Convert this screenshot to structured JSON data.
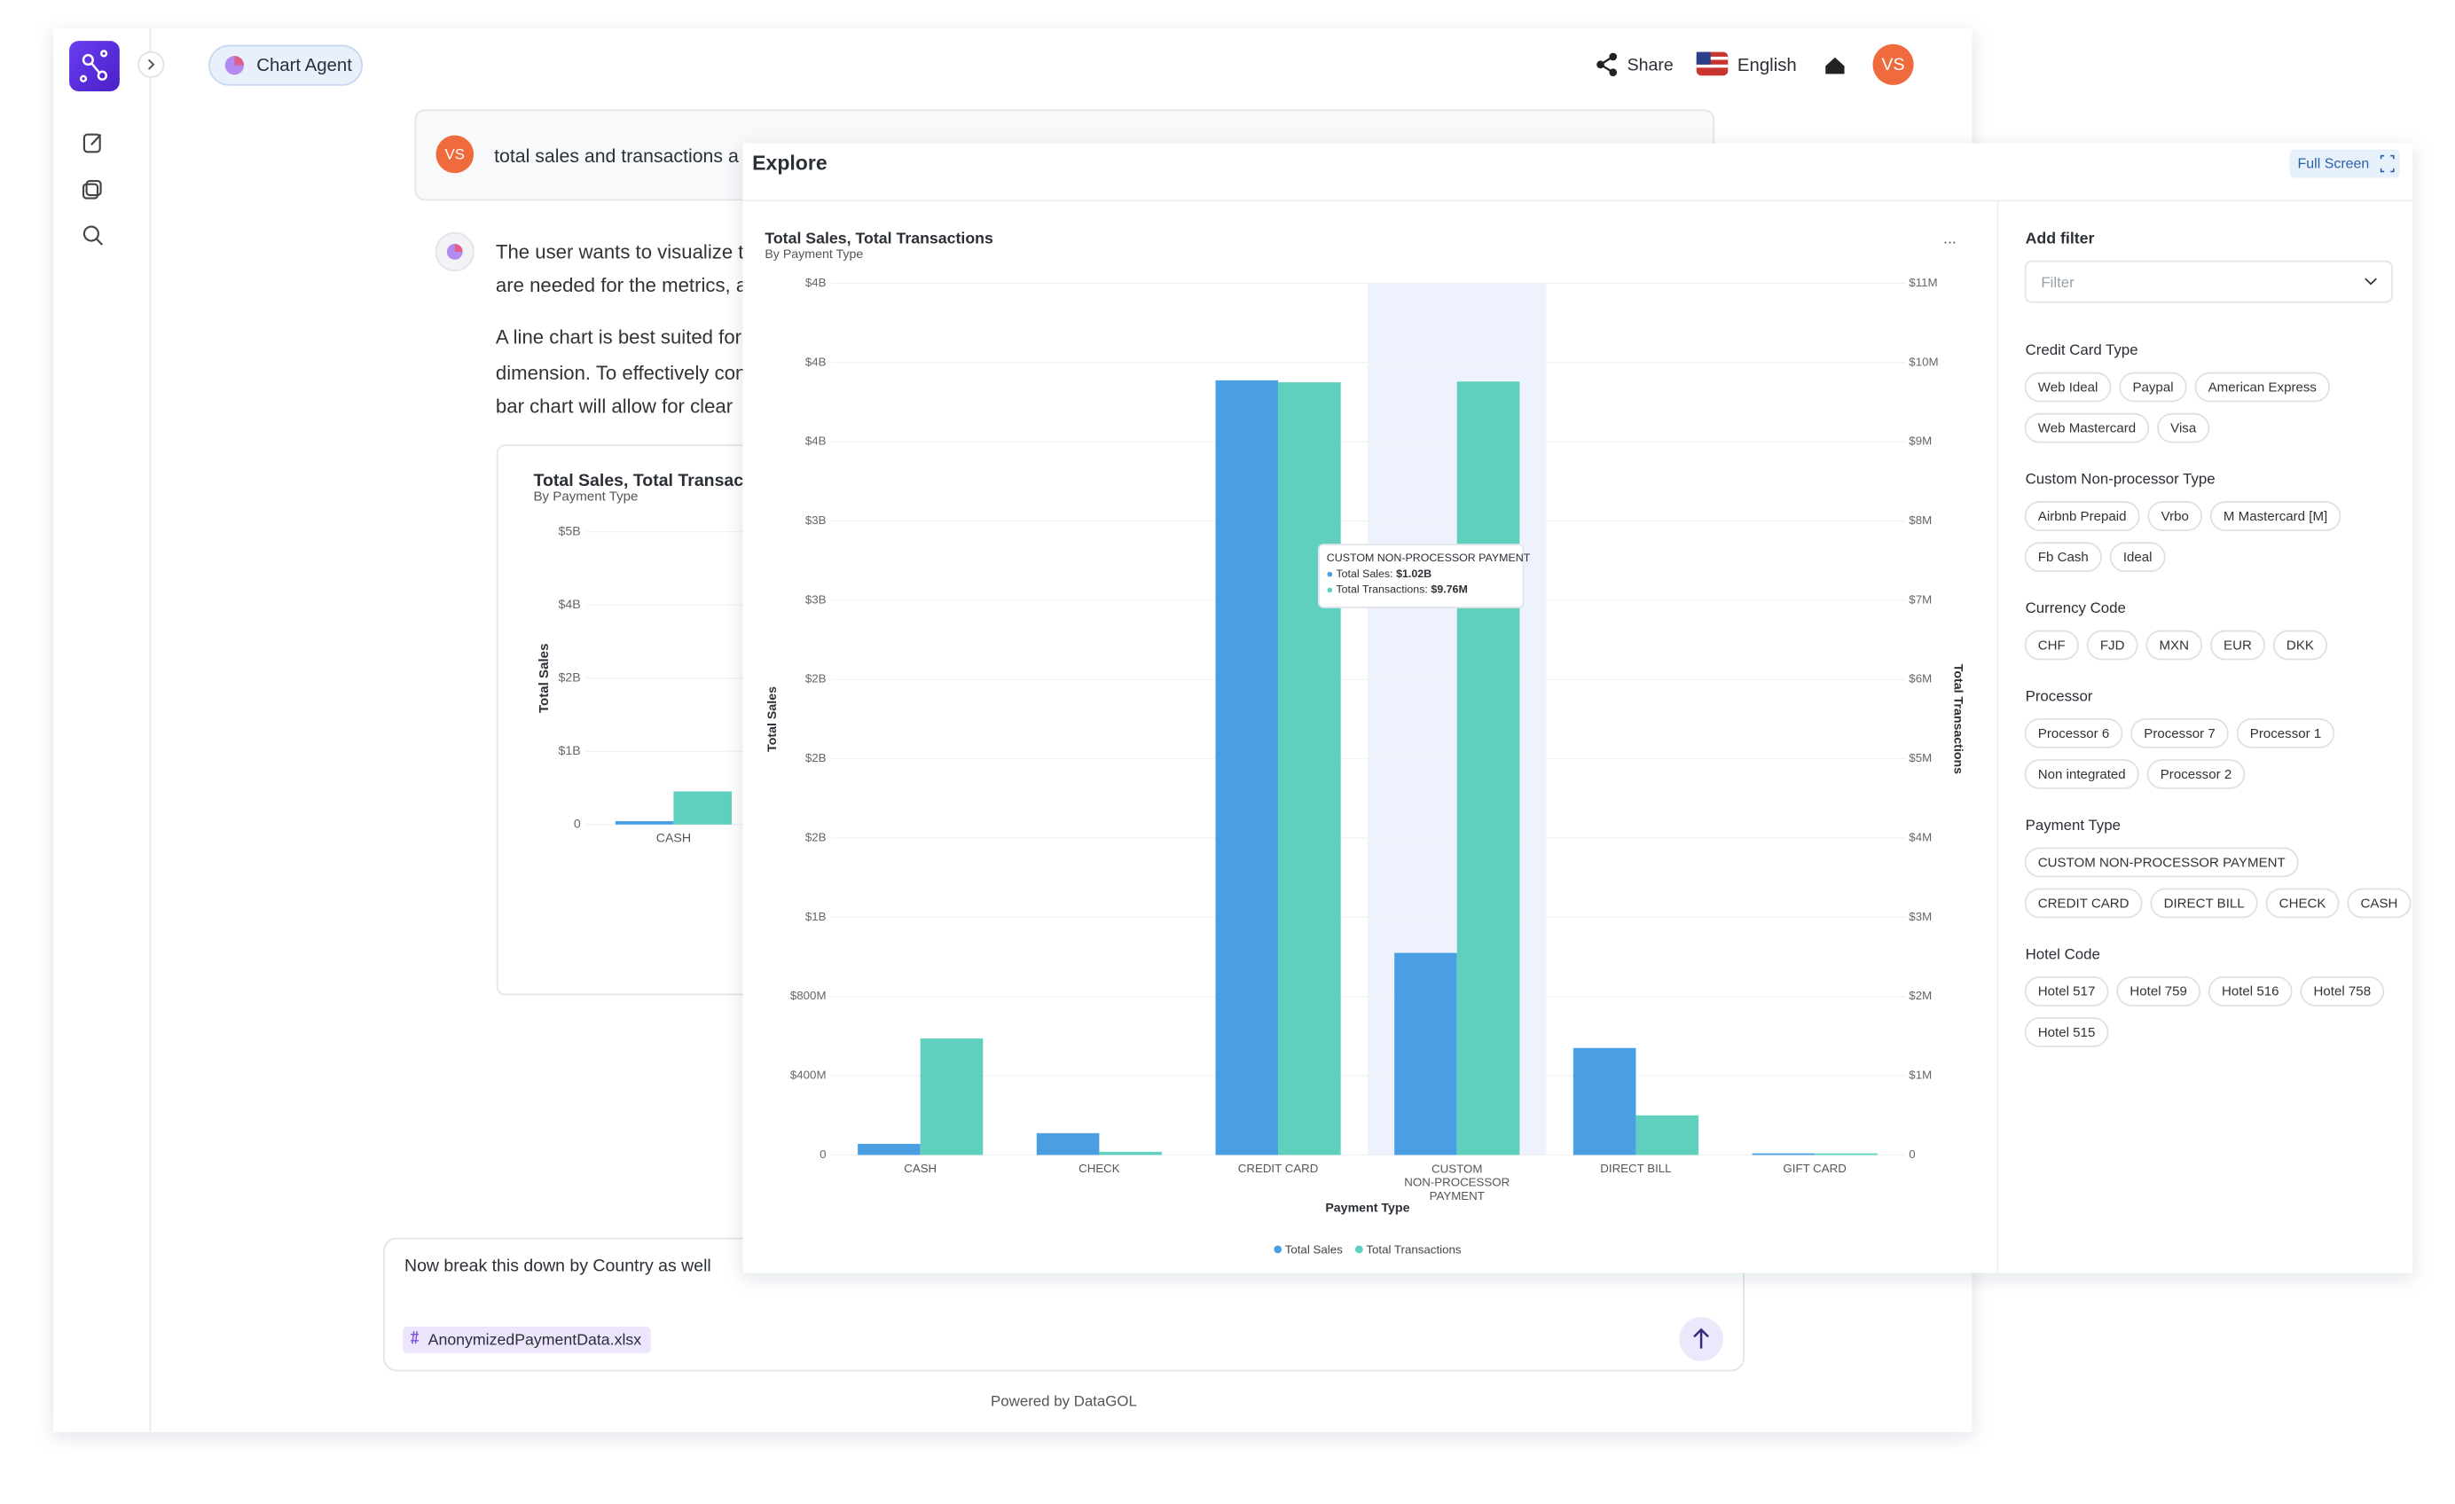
{
  "app": {
    "agent": "Chart Agent",
    "share": "Share",
    "language": "English",
    "avatar": "VS"
  },
  "chat": {
    "user_avatar": "VS",
    "user_message": "total sales and transactions a",
    "reply": [
      "The user wants to visualize t",
      "are needed for the metrics, a"
    ],
    "reply_more": [
      "A line chart is best suited for",
      "dimension. To effectively con",
      "bar chart will allow for clear"
    ]
  },
  "input": {
    "text": "Now break this down by Country as well",
    "attachment": "AnonymizedPaymentData.xlsx",
    "footer": "Powered by DataGOL"
  },
  "explore": {
    "title": "Explore",
    "full_screen": "Full Screen",
    "menu": "..."
  },
  "filters": {
    "title": "Add filter",
    "placeholder": "Filter",
    "groups": [
      {
        "name": "Credit Card Type",
        "rows": [
          [
            "Web Ideal",
            "Paypal",
            "American Express"
          ],
          [
            "Web Mastercard",
            "Visa"
          ]
        ]
      },
      {
        "name": "Custom Non-processor Type",
        "rows": [
          [
            "Airbnb Prepaid",
            "Vrbo",
            "M Mastercard [M]"
          ],
          [
            "Fb Cash",
            "Ideal"
          ]
        ]
      },
      {
        "name": "Currency Code",
        "rows": [
          [
            "CHF",
            "FJD",
            "MXN",
            "EUR",
            "DKK"
          ]
        ]
      },
      {
        "name": "Processor",
        "rows": [
          [
            "Processor 6",
            "Processor 7",
            "Processor 1"
          ],
          [
            "Non integrated",
            "Processor 2"
          ]
        ]
      },
      {
        "name": "Payment Type",
        "rows": [
          [
            "CUSTOM NON-PROCESSOR PAYMENT"
          ],
          [
            "CREDIT CARD",
            "DIRECT BILL",
            "CHECK",
            "CASH"
          ]
        ]
      },
      {
        "name": "Hotel Code",
        "rows": [
          [
            "Hotel 517",
            "Hotel 759",
            "Hotel 516",
            "Hotel 758"
          ],
          [
            "Hotel 515"
          ]
        ]
      }
    ]
  },
  "chart_data": [
    {
      "type": "bar",
      "title": "Total Sales, Total Transactions",
      "subtitle": "By Payment Type",
      "x_label": "Payment Type",
      "y_label": "Total Sales",
      "y2_label": "Total Transactions",
      "categories": [
        "CASH",
        "CHECK",
        "CREDIT CARD",
        "CUSTOM NON-PROCESSOR PAYMENT",
        "DIRECT BILL",
        "GIFT CARD"
      ],
      "series": [
        {
          "name": "Total Sales",
          "color": "#4a9fe3",
          "values": [
            56000000,
            110000000,
            3910000000,
            1020000000,
            540000000,
            8000000
          ]
        },
        {
          "name": "Total Transactions",
          "color": "#5fd0bd",
          "axis": "y2",
          "values": [
            1470000,
            40000,
            9750000,
            9760000,
            500000,
            20000
          ]
        }
      ],
      "ylim": [
        0,
        4400000000
      ],
      "yticks": [
        0,
        {
          "value": 400000000,
          "label": "$400M"
        },
        {
          "value": 800000000,
          "label": "$800M"
        },
        {
          "value": 1200000000,
          "label": "$1B"
        },
        {
          "value": 1600000000,
          "label": "$2B"
        },
        {
          "value": 2000000000,
          "label": "$2B"
        },
        {
          "value": 2400000000,
          "label": "$2B"
        },
        {
          "value": 2800000000,
          "label": "$3B"
        },
        {
          "value": 3200000000,
          "label": "$3B"
        },
        {
          "value": 3600000000,
          "label": "$4B"
        },
        {
          "value": 4000000000,
          "label": "$4B"
        },
        {
          "value": 4400000000,
          "label": "$4B"
        }
      ],
      "y2lim": [
        0,
        11000000
      ],
      "y2ticks": [
        0,
        {
          "value": 1000000,
          "label": "$1M"
        },
        {
          "value": 2000000,
          "label": "$2M"
        },
        {
          "value": 3000000,
          "label": "$3M"
        },
        {
          "value": 4000000,
          "label": "$4M"
        },
        {
          "value": 5000000,
          "label": "$5M"
        },
        {
          "value": 6000000,
          "label": "$6M"
        },
        {
          "value": 7000000,
          "label": "$7M"
        },
        {
          "value": 8000000,
          "label": "$8M"
        },
        {
          "value": 9000000,
          "label": "$9M"
        },
        {
          "value": 10000000,
          "label": "$10M"
        },
        {
          "value": 11000000,
          "label": "$11M"
        }
      ],
      "grid": true,
      "legend": "bottom",
      "tooltip": {
        "title": "CUSTOM NON-PROCESSOR PAYMENT",
        "items": [
          {
            "label": "Total Sales:",
            "value": "$1.02B"
          },
          {
            "label": "Total Transactions:",
            "value": "$9.76M"
          }
        ]
      }
    },
    {
      "type": "bar",
      "title": "Total Sales, Total Transactions",
      "subtitle": "By Payment Type",
      "y_label": "Total Sales",
      "categories": [
        "CASH"
      ],
      "series": [
        {
          "name": "Total Sales",
          "color": "#4a9fe3",
          "values": [
            56000000
          ]
        },
        {
          "name": "Total Transactions",
          "color": "#5fd0bd",
          "axis": "y2",
          "values": [
            1470000
          ]
        }
      ],
      "ylim": [
        0,
        4800000000
      ],
      "yticks": [
        0,
        {
          "value": 1200000000,
          "label": "$1B"
        },
        {
          "value": 2400000000,
          "label": "$2B"
        },
        {
          "value": 3600000000,
          "label": "$4B"
        },
        {
          "value": 4800000000,
          "label": "$5B"
        }
      ],
      "y2lim": [
        0,
        13000000
      ],
      "grid": true
    }
  ]
}
